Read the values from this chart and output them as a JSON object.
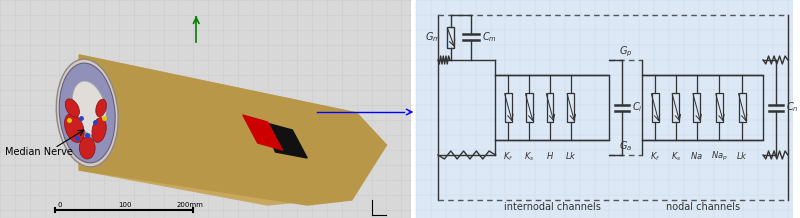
{
  "bg_color": "#f0f0f0",
  "left_panel_bg": "#d8d8d8",
  "schematic_bg": "#dce8f5",
  "grid_color": "#cccccc",
  "arm_color": "#d4b87a",
  "nerve_label": "Median Nerve",
  "internodal_label": "internodal channels",
  "nodal_label": "nodal channels",
  "circuit_line_color": "#333333",
  "dashed_color": "#555555"
}
